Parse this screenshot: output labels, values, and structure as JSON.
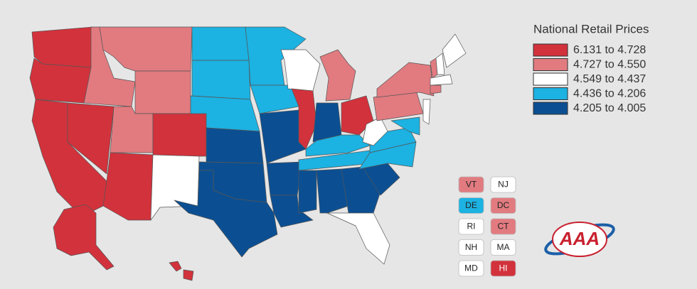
{
  "legend": {
    "title": "National Retail Prices",
    "items": [
      {
        "label": "6.131 to 4.728",
        "color": "#d2323c"
      },
      {
        "label": "4.727 to 4.550",
        "color": "#e17b80"
      },
      {
        "label": "4.549 to 4.437",
        "color": "#ffffff"
      },
      {
        "label": "4.436 to 4.206",
        "color": "#1cb2e2"
      },
      {
        "label": "4.205 to 4.005",
        "color": "#0b4f92"
      }
    ]
  },
  "small_states": [
    {
      "label": "VT",
      "color": "#e17b80"
    },
    {
      "label": "NJ",
      "color": "#ffffff"
    },
    {
      "label": "DE",
      "color": "#1cb2e2"
    },
    {
      "label": "DC",
      "color": "#e17b80"
    },
    {
      "label": "RI",
      "color": "#ffffff"
    },
    {
      "label": "CT",
      "color": "#e17b80"
    },
    {
      "label": "NH",
      "color": "#ffffff"
    },
    {
      "label": "MA",
      "color": "#ffffff"
    },
    {
      "label": "MD",
      "color": "#ffffff"
    },
    {
      "label": "HI",
      "color": "#d2323c"
    }
  ],
  "logo": "AAA"
}
